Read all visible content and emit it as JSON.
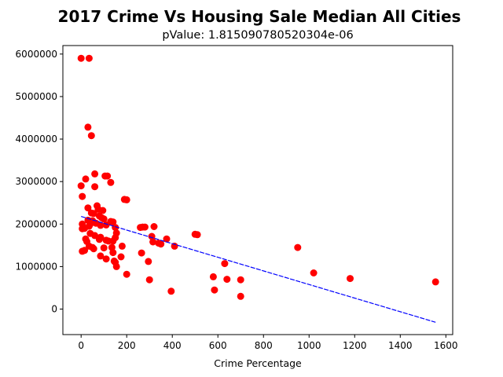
{
  "chart_data": {
    "type": "scatter",
    "title": "2017 Crime Vs Housing Sale Median All Cities",
    "subtitle": "pValue: 1.815090780520304e-06",
    "xlabel": "Crime Percentage",
    "ylabel": "",
    "xlim": [
      -80,
      1630
    ],
    "ylim": [
      -600000,
      6200000
    ],
    "xticks": [
      0,
      200,
      400,
      600,
      800,
      1000,
      1200,
      1400,
      1600
    ],
    "xtick_labels": [
      "0",
      "200",
      "400",
      "600",
      "800",
      "1000",
      "1200",
      "1400",
      "1600"
    ],
    "yticks": [
      0,
      1000000,
      2000000,
      3000000,
      4000000,
      5000000,
      6000000
    ],
    "ytick_labels": [
      "0",
      "1000000",
      "2000000",
      "3000000",
      "4000000",
      "5000000",
      "6000000"
    ],
    "grid": false,
    "colors": {
      "points": "#ff0000",
      "regression": "#0000ff"
    },
    "series": [
      {
        "kind": "points",
        "x": [
          0,
          35,
          30,
          45,
          60,
          105,
          115,
          20,
          0,
          130,
          60,
          190,
          5,
          30,
          70,
          75,
          95,
          45,
          55,
          80,
          90,
          100,
          130,
          140,
          30,
          50,
          65,
          85,
          40,
          110,
          150,
          155,
          35,
          15,
          5,
          5,
          40,
          60,
          85,
          110,
          120,
          140,
          150,
          20,
          25,
          50,
          100,
          135,
          150,
          200,
          260,
          270,
          280,
          320,
          310,
          315,
          340,
          350,
          375,
          410,
          500,
          510,
          180,
          175,
          140,
          145,
          35,
          55,
          85,
          80,
          110,
          15,
          5,
          265,
          295,
          155,
          200,
          300,
          395,
          580,
          640,
          585,
          700,
          630,
          950,
          1020,
          1180,
          1555,
          700
        ],
        "y": [
          5900000,
          5900000,
          4280000,
          4080000,
          3180000,
          3130000,
          3130000,
          3060000,
          2900000,
          2980000,
          2880000,
          2580000,
          2650000,
          2380000,
          2430000,
          2350000,
          2320000,
          2260000,
          2250000,
          2190000,
          2150000,
          2120000,
          2060000,
          2050000,
          2090000,
          2080000,
          2020000,
          1970000,
          2000000,
          1980000,
          1920000,
          1790000,
          1950000,
          1900000,
          2000000,
          1890000,
          1780000,
          1730000,
          1690000,
          1620000,
          1600000,
          1600000,
          1680000,
          1650000,
          1590000,
          1450000,
          1440000,
          1450000,
          1100000,
          2570000,
          1920000,
          1930000,
          1930000,
          1940000,
          1710000,
          1580000,
          1550000,
          1530000,
          1650000,
          1480000,
          1760000,
          1750000,
          1480000,
          1230000,
          1330000,
          1130000,
          1480000,
          1420000,
          1250000,
          1640000,
          1180000,
          1380000,
          1360000,
          1320000,
          1120000,
          1000000,
          820000,
          690000,
          420000,
          760000,
          700000,
          450000,
          690000,
          1070000,
          1450000,
          850000,
          720000,
          640000,
          300000
        ]
      },
      {
        "kind": "regression",
        "x": [
          0,
          1555
        ],
        "y": [
          2180000,
          -310000
        ]
      }
    ]
  }
}
